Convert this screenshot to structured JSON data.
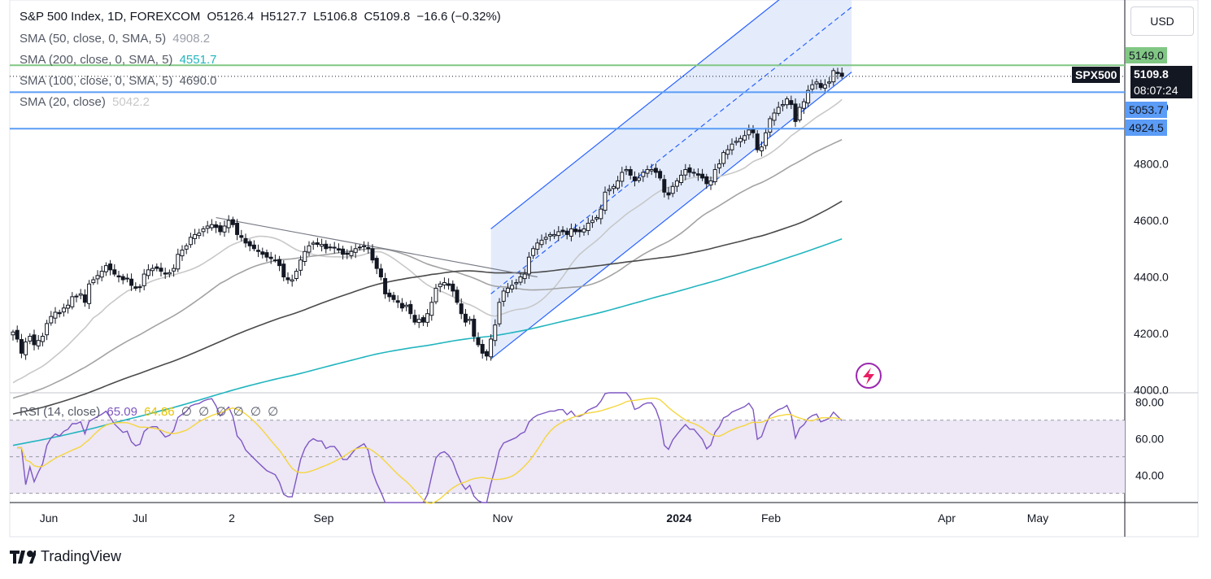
{
  "header": {
    "symbol_line": "S&P 500 Index, 1D, FOREXCOM",
    "open": "O5126.4",
    "high": "H5127.7",
    "low": "L5106.8",
    "close": "C5109.8",
    "change": "−16.6 (−0.32%)"
  },
  "legend": {
    "sma50_label": "SMA (50, close, 0, SMA, 5)",
    "sma50_value": "4908.2",
    "sma200_label": "SMA (200, close, 0, SMA, 5)",
    "sma200_value": "4551.7",
    "sma100_label": "SMA (100, close, 0, SMA, 5)",
    "sma100_value": "4690.0",
    "sma20_label": "SMA (20, close)",
    "sma20_value": "5042.2"
  },
  "rsi_legend": {
    "label": "RSI (14, close)",
    "rsi_value": "65.09",
    "ma_value": "64.86",
    "blanks": [
      "∅",
      "∅",
      "∅",
      "∅",
      "∅",
      "∅"
    ]
  },
  "currency_button": "USD",
  "price_tags": {
    "resistance": "5149.0",
    "symbol": "SPX500",
    "last_price": "5109.8",
    "countdown": "08:07:24",
    "support1": "5053.7",
    "support2": "4924.5"
  },
  "brand": "TradingView",
  "colors": {
    "candle": "#131722",
    "sma20": "#c8c8c8",
    "sma50": "#a3a3a3",
    "sma100": "#4a4a4a",
    "sma200": "#22b5bf",
    "channel_fill": "#dbe6fb",
    "channel_stroke": "#2962ff",
    "support_line": "#5b9cf6",
    "resistance_line": "#81c784",
    "rsi_line": "#7e57c2",
    "rsi_ma": "#f5d63d",
    "rsi_band": "#ede7f6"
  },
  "chart_data": [
    {
      "type": "candlestick",
      "title": "S&P 500 Index, 1D, FOREXCOM",
      "x_axis_labels": [
        "Jun",
        "Jul",
        "2",
        "Sep",
        "Nov",
        "2024",
        "Feb",
        "Apr",
        "May"
      ],
      "y_ticks": [
        4000.0,
        4200.0,
        4400.0,
        4600.0,
        4800.0,
        5000.0
      ],
      "ylim": [
        3990,
        5380
      ],
      "support_levels": [
        5053.7,
        4924.5
      ],
      "resistance_level": 5149.0,
      "last_price": 5109.8,
      "closes": [
        4205,
        4180,
        4130,
        4170,
        4190,
        4160,
        4175,
        4190,
        4235,
        4260,
        4275,
        4270,
        4290,
        4300,
        4330,
        4330,
        4340,
        4310,
        4375,
        4390,
        4405,
        4420,
        4440,
        4425,
        4410,
        4400,
        4390,
        4395,
        4370,
        4360,
        4365,
        4410,
        4425,
        4430,
        4430,
        4420,
        4410,
        4415,
        4430,
        4480,
        4495,
        4510,
        4540,
        4550,
        4555,
        4570,
        4580,
        4585,
        4575,
        4560,
        4580,
        4600,
        4585,
        4550,
        4540,
        4520,
        4510,
        4500,
        4490,
        4480,
        4470,
        4465,
        4460,
        4440,
        4400,
        4390,
        4390,
        4420,
        4460,
        4490,
        4510,
        4520,
        4515,
        4515,
        4500,
        4505,
        4505,
        4495,
        4480,
        4480,
        4490,
        4500,
        4505,
        4510,
        4500,
        4460,
        4430,
        4400,
        4340,
        4330,
        4320,
        4310,
        4290,
        4300,
        4270,
        4240,
        4250,
        4240,
        4270,
        4310,
        4360,
        4375,
        4380,
        4370,
        4350,
        4310,
        4270,
        4240,
        4250,
        4190,
        4160,
        4130,
        4120,
        4180,
        4230,
        4310,
        4350,
        4360,
        4370,
        4380,
        4400,
        4410,
        4470,
        4500,
        4520,
        4530,
        4540,
        4550,
        4550,
        4560,
        4560,
        4550,
        4570,
        4560,
        4560,
        4570,
        4590,
        4600,
        4610,
        4640,
        4700,
        4710,
        4720,
        4740,
        4770,
        4780,
        4760,
        4740,
        4750,
        4770,
        4780,
        4780,
        4770,
        4750,
        4700,
        4690,
        4720,
        4740,
        4760,
        4780,
        4770,
        4770,
        4760,
        4750,
        4730,
        4740,
        4780,
        4800,
        4840,
        4850,
        4870,
        4880,
        4890,
        4900,
        4920,
        4910,
        4850,
        4860,
        4910,
        4960,
        4980,
        5000,
        5010,
        5030,
        5010,
        4950,
        5000,
        5020,
        5060,
        5080,
        5090,
        5070,
        5080,
        5090,
        5130,
        5120,
        5110
      ]
    },
    {
      "type": "line",
      "title": "RSI (14, close)",
      "y_ticks": [
        40.0,
        60.0,
        80.0
      ],
      "ylim": [
        25,
        85
      ],
      "rsi_last": 65.09,
      "rsi_ma_last": 64.86
    }
  ]
}
